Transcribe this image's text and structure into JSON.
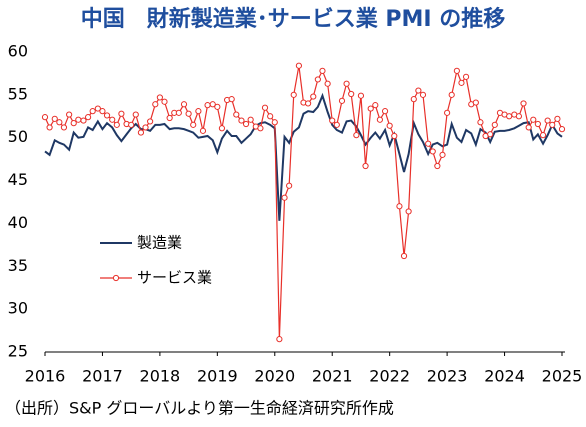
{
  "chart_data": {
    "type": "line",
    "title": "中国　財新製造業･サービス業 PMI の推移",
    "source": "（出所）S&P グローバルより第一生命経済研究所作成",
    "x": [
      2016.0,
      2016.08,
      2016.17,
      2016.25,
      2016.33,
      2016.42,
      2016.5,
      2016.58,
      2016.67,
      2016.75,
      2016.83,
      2016.92,
      2017.0,
      2017.08,
      2017.17,
      2017.25,
      2017.33,
      2017.42,
      2017.5,
      2017.58,
      2017.67,
      2017.75,
      2017.83,
      2017.92,
      2018.0,
      2018.08,
      2018.17,
      2018.25,
      2018.33,
      2018.42,
      2018.5,
      2018.58,
      2018.67,
      2018.75,
      2018.83,
      2018.92,
      2019.0,
      2019.08,
      2019.17,
      2019.25,
      2019.33,
      2019.42,
      2019.5,
      2019.58,
      2019.67,
      2019.75,
      2019.83,
      2019.92,
      2020.0,
      2020.08,
      2020.17,
      2020.25,
      2020.33,
      2020.42,
      2020.5,
      2020.58,
      2020.67,
      2020.75,
      2020.83,
      2020.92,
      2021.0,
      2021.08,
      2021.17,
      2021.25,
      2021.33,
      2021.42,
      2021.5,
      2021.58,
      2021.67,
      2021.75,
      2021.83,
      2021.92,
      2022.0,
      2022.08,
      2022.17,
      2022.25,
      2022.33,
      2022.42,
      2022.5,
      2022.58,
      2022.67,
      2022.75,
      2022.83,
      2022.92,
      2023.0,
      2023.08,
      2023.17,
      2023.25,
      2023.33,
      2023.42,
      2023.5,
      2023.58,
      2023.67,
      2023.75,
      2023.83,
      2023.92,
      2024.0,
      2024.08,
      2024.17,
      2024.25,
      2024.33,
      2024.42,
      2024.5,
      2024.58,
      2024.67,
      2024.75,
      2024.83,
      2024.92,
      2025.0
    ],
    "series": [
      {
        "name": "製造業",
        "color": "#1f3864",
        "marker": false,
        "values": [
          48.4,
          48.0,
          49.7,
          49.4,
          49.2,
          48.6,
          50.6,
          50.0,
          50.1,
          51.2,
          50.9,
          51.9,
          51.0,
          51.7,
          51.2,
          50.3,
          49.6,
          50.4,
          51.1,
          51.6,
          51.0,
          51.0,
          50.8,
          51.5,
          51.5,
          51.6,
          51.0,
          51.1,
          51.1,
          51.0,
          50.8,
          50.6,
          50.0,
          50.1,
          50.2,
          49.7,
          48.3,
          49.9,
          50.8,
          50.2,
          50.2,
          49.4,
          49.9,
          50.4,
          51.4,
          51.7,
          51.8,
          51.5,
          51.1,
          40.3,
          50.1,
          49.4,
          50.7,
          51.2,
          52.8,
          53.1,
          53.0,
          53.6,
          54.9,
          53.0,
          51.5,
          50.9,
          50.6,
          51.9,
          52.0,
          51.3,
          50.3,
          49.2,
          50.0,
          50.6,
          49.9,
          50.9,
          49.1,
          50.4,
          48.1,
          46.0,
          48.1,
          51.7,
          50.4,
          49.5,
          48.1,
          49.2,
          49.4,
          49.0,
          49.2,
          51.6,
          50.0,
          49.5,
          50.9,
          50.5,
          49.2,
          51.0,
          50.6,
          49.5,
          50.7,
          50.8,
          50.8,
          50.9,
          51.1,
          51.4,
          51.7,
          51.8,
          49.8,
          50.4,
          49.3,
          50.3,
          51.5,
          50.5,
          50.1
        ]
      },
      {
        "name": "サービス業",
        "color": "#e8302a",
        "marker": true,
        "values": [
          52.4,
          51.2,
          52.2,
          51.8,
          51.2,
          52.7,
          51.7,
          52.1,
          52.0,
          52.4,
          53.1,
          53.4,
          53.1,
          52.6,
          52.1,
          51.5,
          52.8,
          51.6,
          51.5,
          52.7,
          50.6,
          51.2,
          51.9,
          53.9,
          54.7,
          54.2,
          52.3,
          52.9,
          52.9,
          53.9,
          52.8,
          51.5,
          53.1,
          50.8,
          53.8,
          53.9,
          53.6,
          51.1,
          54.4,
          54.5,
          52.7,
          52.0,
          51.6,
          52.1,
          51.3,
          51.1,
          53.5,
          52.5,
          51.8,
          26.5,
          43.0,
          44.4,
          55.0,
          58.4,
          54.1,
          54.0,
          54.8,
          56.8,
          57.8,
          56.3,
          52.0,
          51.5,
          54.3,
          56.3,
          55.1,
          50.3,
          54.9,
          46.7,
          53.4,
          53.8,
          52.1,
          53.1,
          51.4,
          50.2,
          42.0,
          36.2,
          41.4,
          54.5,
          55.5,
          55.0,
          49.3,
          48.4,
          46.7,
          48.0,
          52.9,
          55.0,
          57.8,
          56.4,
          57.1,
          53.9,
          54.1,
          51.8,
          50.2,
          50.4,
          51.5,
          52.9,
          52.7,
          52.5,
          52.7,
          52.5,
          54.0,
          51.2,
          52.1,
          51.6,
          50.3,
          52.0,
          51.5,
          52.2,
          51.0
        ]
      }
    ],
    "xlim": [
      2016,
      2025
    ],
    "xticks": [
      2016,
      2017,
      2018,
      2019,
      2020,
      2021,
      2022,
      2023,
      2024,
      2025
    ],
    "ylim": [
      25,
      60
    ],
    "yticks": [
      25,
      30,
      35,
      40,
      45,
      50,
      55,
      60
    ],
    "grid": false
  }
}
